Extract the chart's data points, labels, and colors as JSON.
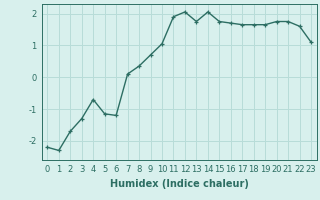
{
  "x": [
    0,
    1,
    2,
    3,
    4,
    5,
    6,
    7,
    8,
    9,
    10,
    11,
    12,
    13,
    14,
    15,
    16,
    17,
    18,
    19,
    20,
    21,
    22,
    23
  ],
  "y": [
    -2.2,
    -2.3,
    -1.7,
    -1.3,
    -0.7,
    -1.15,
    -1.2,
    0.1,
    0.35,
    0.7,
    1.05,
    1.9,
    2.05,
    1.75,
    2.05,
    1.75,
    1.7,
    1.65,
    1.65,
    1.65,
    1.75,
    1.75,
    1.6,
    1.1
  ],
  "title": "",
  "xlabel": "Humidex (Indice chaleur)",
  "ylabel": "",
  "ylim": [
    -2.6,
    2.3
  ],
  "xlim": [
    -0.5,
    23.5
  ],
  "line_color": "#2d6e63",
  "marker": "+",
  "bg_color": "#d8f0ed",
  "grid_color": "#b8dcd8",
  "tick_fontsize": 6,
  "xlabel_fontsize": 7,
  "yticks": [
    -2,
    -1,
    0,
    1,
    2
  ],
  "xticks": [
    0,
    1,
    2,
    3,
    4,
    5,
    6,
    7,
    8,
    9,
    10,
    11,
    12,
    13,
    14,
    15,
    16,
    17,
    18,
    19,
    20,
    21,
    22,
    23
  ]
}
